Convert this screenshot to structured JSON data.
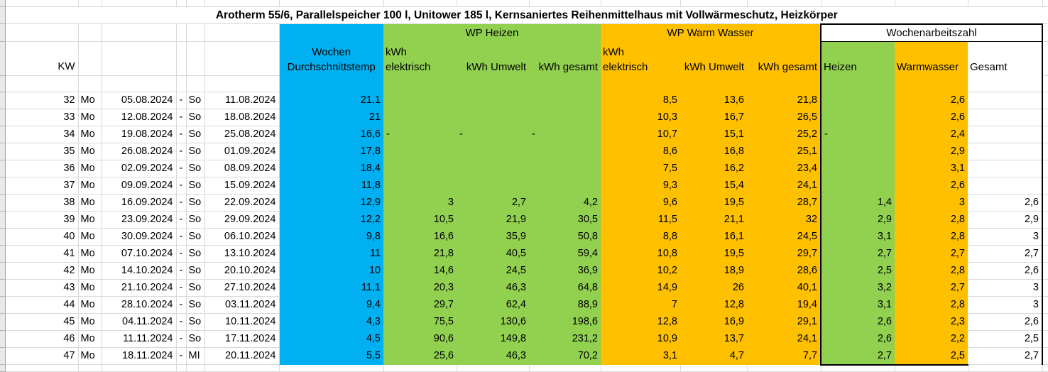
{
  "title": "Arotherm 55/6, Parallelspeicher 100 l, Unitower 185 l, Kernsaniertes Reihenmittelhaus mit Vollwärmeschutz, Heizkörper",
  "groups": {
    "heizen": "WP Heizen",
    "warmwasser": "WP Warm Wasser",
    "arbeitszahl": "Wochenarbeitszahl"
  },
  "columns": {
    "kw": "KW",
    "temp_line1": "Wochen",
    "temp_line2": "Durchschnittstemp",
    "kwh": "kWh",
    "elektrisch": "elektrisch",
    "kwh_umwelt": "kWh Umwelt",
    "kwh_gesamt": "kWh gesamt",
    "az_heizen": "Heizen",
    "az_warmwasser": "Warmwasser",
    "az_gesamt": "Gesamt"
  },
  "colors": {
    "temp_column": "#00B0F0",
    "heizen_group": "#92D050",
    "warmwasser_group": "#FFC000",
    "box_border": "#000000",
    "gridline": "#d9d9d9"
  },
  "rows": [
    {
      "kw": "32",
      "sd": "Mo",
      "d1": "05.08.2024",
      "sep": "-",
      "ed": "So",
      "d2": "11.08.2024",
      "temp": "21,1",
      "he": "",
      "hu": "",
      "hg": "",
      "we": "8,5",
      "wu": "13,6",
      "wg": "21,8",
      "azh": "",
      "azw": "2,6",
      "azg": ""
    },
    {
      "kw": "33",
      "sd": "Mo",
      "d1": "12.08.2024",
      "sep": "-",
      "ed": "So",
      "d2": "18.08.2024",
      "temp": "21",
      "he": "",
      "hu": "",
      "hg": "",
      "we": "10,3",
      "wu": "16,7",
      "wg": "26,5",
      "azh": "",
      "azw": "2,6",
      "azg": ""
    },
    {
      "kw": "34",
      "sd": "Mo",
      "d1": "19.08.2024",
      "sep": "-",
      "ed": "So",
      "d2": "25.08.2024",
      "temp": "16,6",
      "he": "-",
      "hu": "-",
      "hg": "-",
      "we": "10,7",
      "wu": "15,1",
      "wg": "25,2",
      "azh": "-",
      "azw": "2,4",
      "azg": ""
    },
    {
      "kw": "35",
      "sd": "Mo",
      "d1": "26.08.2024",
      "sep": "-",
      "ed": "So",
      "d2": "01.09.2024",
      "temp": "17,8",
      "he": "",
      "hu": "",
      "hg": "",
      "we": "8,6",
      "wu": "16,8",
      "wg": "25,1",
      "azh": "",
      "azw": "2,9",
      "azg": ""
    },
    {
      "kw": "36",
      "sd": "Mo",
      "d1": "02.09.2024",
      "sep": "-",
      "ed": "So",
      "d2": "08.09.2024",
      "temp": "18,4",
      "he": "",
      "hu": "",
      "hg": "",
      "we": "7,5",
      "wu": "16,2",
      "wg": "23,4",
      "azh": "",
      "azw": "3,1",
      "azg": ""
    },
    {
      "kw": "37",
      "sd": "Mo",
      "d1": "09.09.2024",
      "sep": "-",
      "ed": "So",
      "d2": "15.09.2024",
      "temp": "11,8",
      "he": "",
      "hu": "",
      "hg": "",
      "we": "9,3",
      "wu": "15,4",
      "wg": "24,1",
      "azh": "",
      "azw": "2,6",
      "azg": ""
    },
    {
      "kw": "38",
      "sd": "Mo",
      "d1": "16.09.2024",
      "sep": "-",
      "ed": "So",
      "d2": "22.09.2024",
      "temp": "12,9",
      "he": "3",
      "hu": "2,7",
      "hg": "4,2",
      "we": "9,6",
      "wu": "19,5",
      "wg": "28,7",
      "azh": "1,4",
      "azw": "3",
      "azg": "2,6"
    },
    {
      "kw": "39",
      "sd": "Mo",
      "d1": "23.09.2024",
      "sep": "-",
      "ed": "So",
      "d2": "29.09.2024",
      "temp": "12,2",
      "he": "10,5",
      "hu": "21,9",
      "hg": "30,5",
      "we": "11,5",
      "wu": "21,1",
      "wg": "32",
      "azh": "2,9",
      "azw": "2,8",
      "azg": "2,9"
    },
    {
      "kw": "40",
      "sd": "Mo",
      "d1": "30.09.2024",
      "sep": "-",
      "ed": "So",
      "d2": "06.10.2024",
      "temp": "9,8",
      "he": "16,6",
      "hu": "35,9",
      "hg": "50,8",
      "we": "8,8",
      "wu": "16,1",
      "wg": "24,5",
      "azh": "3,1",
      "azw": "2,8",
      "azg": "3"
    },
    {
      "kw": "41",
      "sd": "Mo",
      "d1": "07.10.2024",
      "sep": "-",
      "ed": "So",
      "d2": "13.10.2024",
      "temp": "11",
      "he": "21,8",
      "hu": "40,5",
      "hg": "59,4",
      "we": "10,8",
      "wu": "19,5",
      "wg": "29,7",
      "azh": "2,7",
      "azw": "2,7",
      "azg": "2,7"
    },
    {
      "kw": "42",
      "sd": "Mo",
      "d1": "14.10.2024",
      "sep": "-",
      "ed": "So",
      "d2": "20.10.2024",
      "temp": "10",
      "he": "14,6",
      "hu": "24,5",
      "hg": "36,9",
      "we": "10,2",
      "wu": "18,9",
      "wg": "28,6",
      "azh": "2,5",
      "azw": "2,8",
      "azg": "2,6"
    },
    {
      "kw": "43",
      "sd": "Mo",
      "d1": "21.10.2024",
      "sep": "-",
      "ed": "So",
      "d2": "27.10.2024",
      "temp": "11,1",
      "he": "20,3",
      "hu": "46,3",
      "hg": "64,8",
      "we": "14,9",
      "wu": "26",
      "wg": "40,1",
      "azh": "3,2",
      "azw": "2,7",
      "azg": "3"
    },
    {
      "kw": "44",
      "sd": "Mo",
      "d1": "28.10.2024",
      "sep": "-",
      "ed": "So",
      "d2": "03.11.2024",
      "temp": "9,4",
      "he": "29,7",
      "hu": "62,4",
      "hg": "88,9",
      "we": "7",
      "wu": "12,8",
      "wg": "19,4",
      "azh": "3,1",
      "azw": "2,8",
      "azg": "3"
    },
    {
      "kw": "45",
      "sd": "Mo",
      "d1": "04.11.2024",
      "sep": "-",
      "ed": "So",
      "d2": "10.11.2024",
      "temp": "4,3",
      "he": "75,5",
      "hu": "130,6",
      "hg": "198,6",
      "we": "12,8",
      "wu": "16,9",
      "wg": "29,1",
      "azh": "2,6",
      "azw": "2,3",
      "azg": "2,6"
    },
    {
      "kw": "46",
      "sd": "Mo",
      "d1": "11.11.2024",
      "sep": "-",
      "ed": "So",
      "d2": "17.11.2024",
      "temp": "4,5",
      "he": "90,6",
      "hu": "149,8",
      "hg": "231,2",
      "we": "10,9",
      "wu": "13,7",
      "wg": "24,1",
      "azh": "2,6",
      "azw": "2,2",
      "azg": "2,5"
    },
    {
      "kw": "47",
      "sd": "Mo",
      "d1": "18.11.2024",
      "sep": "-",
      "ed": "MI",
      "d2": "20.11.2024",
      "temp": "5,5",
      "he": "25,6",
      "hu": "46,3",
      "hg": "70,2",
      "we": "3,1",
      "wu": "4,7",
      "wg": "7,7",
      "azh": "2,7",
      "azw": "2,5",
      "azg": "2,7"
    }
  ]
}
